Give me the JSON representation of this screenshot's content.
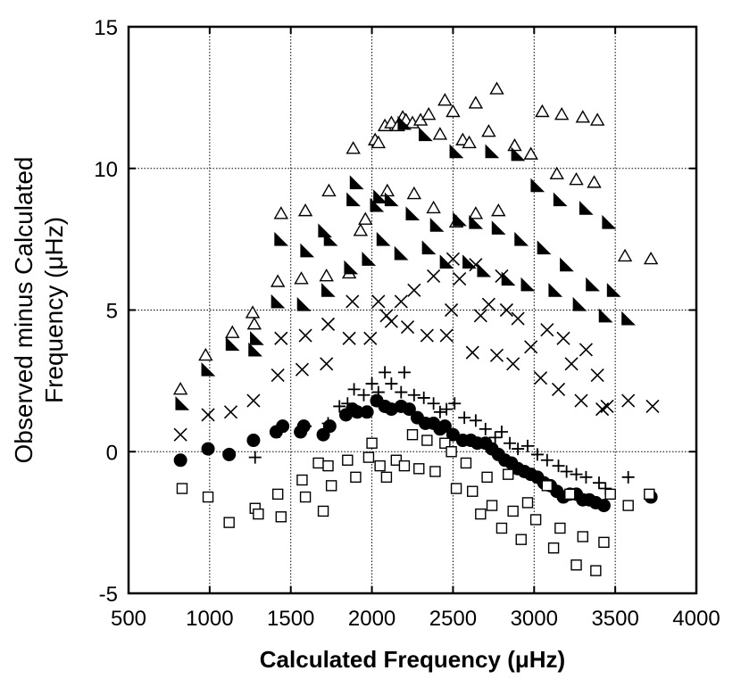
{
  "chart_data": {
    "type": "scatter",
    "title": "",
    "xlabel": "Calculated Frequency (μHz)",
    "ylabel_lines": [
      "Observed minus Calculated",
      "Frequency (μHz)"
    ],
    "xlim": [
      500,
      4000
    ],
    "ylim": [
      -5,
      15
    ],
    "xticks": [
      500,
      1000,
      1500,
      2000,
      2500,
      3000,
      3500,
      4000
    ],
    "yticks": [
      -5,
      0,
      5,
      10,
      15
    ],
    "grid": true,
    "legend": "none",
    "series": [
      {
        "name": "open-triangle",
        "marker": "triangle-open",
        "points": [
          [
            820,
            2.2
          ],
          [
            975,
            3.4
          ],
          [
            1140,
            4.2
          ],
          [
            1265,
            4.9
          ],
          [
            1275,
            4.5
          ],
          [
            1420,
            6.0
          ],
          [
            1440,
            8.4
          ],
          [
            1565,
            6.1
          ],
          [
            1590,
            8.5
          ],
          [
            1720,
            6.2
          ],
          [
            1735,
            9.2
          ],
          [
            1860,
            6.3
          ],
          [
            1885,
            10.7
          ],
          [
            1930,
            7.8
          ],
          [
            1960,
            8.2
          ],
          [
            2020,
            11.0
          ],
          [
            2040,
            10.9
          ],
          [
            2080,
            11.5
          ],
          [
            2095,
            9.2
          ],
          [
            2120,
            11.6
          ],
          [
            2160,
            11.5
          ],
          [
            2190,
            11.8
          ],
          [
            2210,
            11.7
          ],
          [
            2250,
            11.6
          ],
          [
            2300,
            11.7
          ],
          [
            2350,
            11.9
          ],
          [
            2420,
            11.2
          ],
          [
            2450,
            12.4
          ],
          [
            2500,
            12.0
          ],
          [
            2560,
            11.0
          ],
          [
            2600,
            10.9
          ],
          [
            2640,
            12.3
          ],
          [
            2720,
            11.3
          ],
          [
            2770,
            12.8
          ],
          [
            2880,
            10.8
          ],
          [
            2980,
            10.5
          ],
          [
            3050,
            12.0
          ],
          [
            3140,
            9.8
          ],
          [
            3170,
            11.9
          ],
          [
            3260,
            9.6
          ],
          [
            3300,
            11.8
          ],
          [
            3370,
            9.5
          ],
          [
            3390,
            11.7
          ],
          [
            3560,
            6.9
          ],
          [
            3720,
            6.8
          ],
          [
            2260,
            9.1
          ],
          [
            2380,
            8.6
          ],
          [
            2520,
            8.1
          ],
          [
            2640,
            8.4
          ],
          [
            2780,
            8.5
          ]
        ]
      },
      {
        "name": "filled-corner-triangle",
        "marker": "corner-triangle-filled",
        "points": [
          [
            830,
            1.7
          ],
          [
            990,
            2.9
          ],
          [
            1140,
            3.8
          ],
          [
            1280,
            3.6
          ],
          [
            1290,
            4.0
          ],
          [
            1420,
            5.3
          ],
          [
            1440,
            7.5
          ],
          [
            1580,
            5.2
          ],
          [
            1600,
            7.1
          ],
          [
            1730,
            5.7
          ],
          [
            1745,
            7.5
          ],
          [
            1870,
            6.5
          ],
          [
            1885,
            8.9
          ],
          [
            1905,
            9.5
          ],
          [
            1980,
            6.8
          ],
          [
            2030,
            8.7
          ],
          [
            2050,
            9.0
          ],
          [
            2070,
            7.5
          ],
          [
            2120,
            8.9
          ],
          [
            2180,
            7.0
          ],
          [
            2200,
            11.6
          ],
          [
            2250,
            8.4
          ],
          [
            2330,
            11.2
          ],
          [
            2350,
            7.2
          ],
          [
            2400,
            8.0
          ],
          [
            2460,
            6.7
          ],
          [
            2520,
            10.6
          ],
          [
            2540,
            8.2
          ],
          [
            2600,
            6.7
          ],
          [
            2640,
            8.1
          ],
          [
            2690,
            6.4
          ],
          [
            2740,
            10.6
          ],
          [
            2780,
            7.9
          ],
          [
            2840,
            6.1
          ],
          [
            2900,
            10.5
          ],
          [
            2920,
            7.5
          ],
          [
            2960,
            5.9
          ],
          [
            3020,
            9.4
          ],
          [
            3060,
            7.2
          ],
          [
            3130,
            5.7
          ],
          [
            3160,
            8.9
          ],
          [
            3200,
            6.6
          ],
          [
            3280,
            5.2
          ],
          [
            3320,
            8.6
          ],
          [
            3360,
            5.9
          ],
          [
            3440,
            4.8
          ],
          [
            3460,
            8.1
          ],
          [
            3490,
            5.7
          ],
          [
            3580,
            4.7
          ],
          [
            1710,
            7.8
          ]
        ]
      },
      {
        "name": "cross",
        "marker": "x",
        "points": [
          [
            820,
            0.6
          ],
          [
            990,
            1.3
          ],
          [
            1130,
            1.4
          ],
          [
            1270,
            1.8
          ],
          [
            1420,
            2.7
          ],
          [
            1440,
            4.0
          ],
          [
            1570,
            2.9
          ],
          [
            1590,
            4.1
          ],
          [
            1720,
            3.1
          ],
          [
            1730,
            4.5
          ],
          [
            1860,
            4.0
          ],
          [
            1880,
            5.3
          ],
          [
            1990,
            4.0
          ],
          [
            2040,
            5.3
          ],
          [
            2090,
            4.8
          ],
          [
            2120,
            4.6
          ],
          [
            2180,
            5.3
          ],
          [
            2220,
            4.4
          ],
          [
            2260,
            5.7
          ],
          [
            2340,
            4.1
          ],
          [
            2380,
            6.2
          ],
          [
            2460,
            4.1
          ],
          [
            2490,
            5.0
          ],
          [
            2540,
            6.1
          ],
          [
            2620,
            3.5
          ],
          [
            2670,
            4.8
          ],
          [
            2720,
            5.2
          ],
          [
            2770,
            3.4
          ],
          [
            2830,
            5.0
          ],
          [
            2870,
            3.1
          ],
          [
            2900,
            4.7
          ],
          [
            2980,
            3.7
          ],
          [
            3040,
            2.6
          ],
          [
            3080,
            4.3
          ],
          [
            3150,
            2.2
          ],
          [
            3180,
            4.0
          ],
          [
            3230,
            3.1
          ],
          [
            3290,
            1.8
          ],
          [
            3320,
            3.6
          ],
          [
            3390,
            2.7
          ],
          [
            3420,
            1.5
          ],
          [
            3450,
            1.6
          ],
          [
            3580,
            1.8
          ],
          [
            3730,
            1.6
          ],
          [
            2500,
            6.8
          ],
          [
            2640,
            6.6
          ],
          [
            2800,
            6.2
          ]
        ]
      },
      {
        "name": "plus",
        "marker": "plus",
        "points": [
          [
            1280,
            -0.2
          ],
          [
            1430,
            0.7
          ],
          [
            1590,
            0.9
          ],
          [
            1730,
            1.0
          ],
          [
            1800,
            1.6
          ],
          [
            1850,
            1.7
          ],
          [
            1890,
            2.2
          ],
          [
            1950,
            2.0
          ],
          [
            2000,
            2.4
          ],
          [
            2040,
            2.1
          ],
          [
            2080,
            2.8
          ],
          [
            2120,
            2.4
          ],
          [
            2180,
            2.1
          ],
          [
            2200,
            2.8
          ],
          [
            2260,
            2.0
          ],
          [
            2320,
            1.9
          ],
          [
            2380,
            1.7
          ],
          [
            2420,
            1.4
          ],
          [
            2460,
            1.5
          ],
          [
            2510,
            1.7
          ],
          [
            2570,
            1.2
          ],
          [
            2640,
            1.1
          ],
          [
            2700,
            0.8
          ],
          [
            2760,
            0.5
          ],
          [
            2800,
            0.7
          ],
          [
            2850,
            0.3
          ],
          [
            2900,
            0.1
          ],
          [
            2960,
            0.2
          ],
          [
            3020,
            -0.1
          ],
          [
            3080,
            -0.3
          ],
          [
            3150,
            -0.5
          ],
          [
            3200,
            -0.7
          ],
          [
            3260,
            -0.8
          ],
          [
            3320,
            -0.9
          ],
          [
            3400,
            -1.1
          ],
          [
            3440,
            -1.3
          ],
          [
            3580,
            -0.9
          ]
        ]
      },
      {
        "name": "filled-circle",
        "marker": "circle-filled",
        "points": [
          [
            820,
            -0.3
          ],
          [
            990,
            0.1
          ],
          [
            1120,
            -0.1
          ],
          [
            1270,
            0.4
          ],
          [
            1410,
            0.7
          ],
          [
            1450,
            0.9
          ],
          [
            1560,
            0.7
          ],
          [
            1580,
            0.9
          ],
          [
            1700,
            0.6
          ],
          [
            1740,
            0.9
          ],
          [
            1840,
            1.3
          ],
          [
            1880,
            1.5
          ],
          [
            1910,
            1.4
          ],
          [
            1970,
            1.4
          ],
          [
            2030,
            1.8
          ],
          [
            2080,
            1.6
          ],
          [
            2120,
            1.5
          ],
          [
            2180,
            1.6
          ],
          [
            2230,
            1.5
          ],
          [
            2280,
            1.2
          ],
          [
            2330,
            1.0
          ],
          [
            2380,
            1.0
          ],
          [
            2420,
            0.8
          ],
          [
            2450,
            0.9
          ],
          [
            2500,
            0.6
          ],
          [
            2560,
            0.4
          ],
          [
            2610,
            0.4
          ],
          [
            2650,
            0.3
          ],
          [
            2700,
            0.3
          ],
          [
            2740,
            0.1
          ],
          [
            2780,
            -0.1
          ],
          [
            2820,
            -0.3
          ],
          [
            2860,
            -0.4
          ],
          [
            2900,
            -0.6
          ],
          [
            2940,
            -0.7
          ],
          [
            2980,
            -0.8
          ],
          [
            3020,
            -0.9
          ],
          [
            3060,
            -1.1
          ],
          [
            3100,
            -1.2
          ],
          [
            3140,
            -1.4
          ],
          [
            3180,
            -1.6
          ],
          [
            3220,
            -1.5
          ],
          [
            3260,
            -1.5
          ],
          [
            3300,
            -1.7
          ],
          [
            3340,
            -1.7
          ],
          [
            3380,
            -1.8
          ],
          [
            3430,
            -1.9
          ],
          [
            3720,
            -1.6
          ]
        ]
      },
      {
        "name": "open-square",
        "marker": "square-open",
        "points": [
          [
            830,
            -1.3
          ],
          [
            990,
            -1.6
          ],
          [
            1120,
            -2.5
          ],
          [
            1280,
            -2.0
          ],
          [
            1300,
            -2.2
          ],
          [
            1420,
            -1.5
          ],
          [
            1440,
            -2.3
          ],
          [
            1570,
            -1.0
          ],
          [
            1590,
            -1.6
          ],
          [
            1670,
            -0.4
          ],
          [
            1700,
            -2.1
          ],
          [
            1730,
            -0.5
          ],
          [
            1750,
            -1.2
          ],
          [
            1850,
            -0.3
          ],
          [
            1900,
            -0.9
          ],
          [
            1980,
            -0.2
          ],
          [
            2000,
            0.3
          ],
          [
            2050,
            -0.5
          ],
          [
            2090,
            -0.9
          ],
          [
            2150,
            -0.3
          ],
          [
            2200,
            -0.5
          ],
          [
            2250,
            0.6
          ],
          [
            2290,
            -0.6
          ],
          [
            2340,
            0.4
          ],
          [
            2390,
            -0.7
          ],
          [
            2450,
            0.3
          ],
          [
            2490,
            0.0
          ],
          [
            2520,
            -1.3
          ],
          [
            2580,
            -0.4
          ],
          [
            2620,
            -1.4
          ],
          [
            2670,
            -2.2
          ],
          [
            2710,
            -0.9
          ],
          [
            2740,
            -1.9
          ],
          [
            2800,
            -2.7
          ],
          [
            2840,
            -0.8
          ],
          [
            2870,
            -2.1
          ],
          [
            2920,
            -3.1
          ],
          [
            2960,
            -1.8
          ],
          [
            3010,
            -2.4
          ],
          [
            3080,
            -1.2
          ],
          [
            3120,
            -3.4
          ],
          [
            3160,
            -2.7
          ],
          [
            3220,
            -1.5
          ],
          [
            3260,
            -4.0
          ],
          [
            3300,
            -3.0
          ],
          [
            3380,
            -4.2
          ],
          [
            3430,
            -3.2
          ],
          [
            3470,
            -1.5
          ],
          [
            3580,
            -1.9
          ],
          [
            3710,
            -1.5
          ]
        ]
      }
    ]
  }
}
